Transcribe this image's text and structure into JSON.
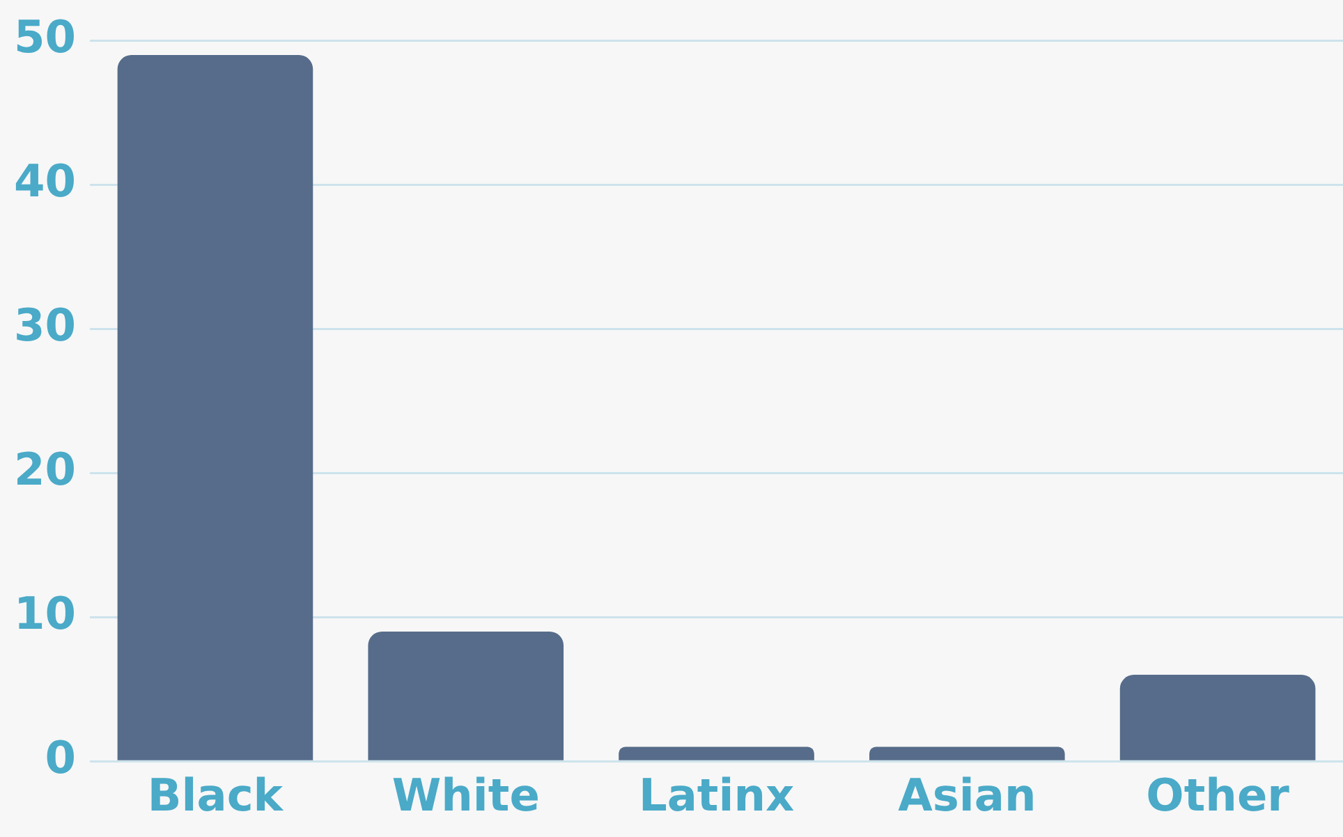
{
  "chart_data": {
    "type": "bar",
    "categories": [
      "Black",
      "White",
      "Latinx",
      "Asian",
      "Other"
    ],
    "values": [
      49,
      9,
      1,
      1,
      6
    ],
    "color": "#566c8a",
    "ylim": [
      0,
      50
    ],
    "yticks": [
      0,
      10,
      20,
      30,
      40,
      50
    ],
    "grid": "y"
  }
}
